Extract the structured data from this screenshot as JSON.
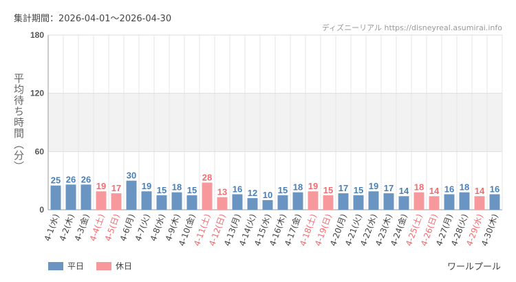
{
  "header": {
    "period": "集計期間：2026-04-01～2026-04-30",
    "source": "ディズニーリアル https://disneyreal.asumirai.info"
  },
  "legend": {
    "weekday": "平日",
    "holiday": "休日"
  },
  "attraction": "ワールプール",
  "colors": {
    "weekday": "#6a95c3",
    "holiday": "#f7999c",
    "weekday_text": "#4a7fb5",
    "holiday_text": "#f26b6f",
    "band": "#f2f2f2",
    "grid": "#e6e6e6"
  },
  "chart_data": {
    "type": "bar",
    "title": "",
    "xlabel": "",
    "ylabel": "平均待ち時間（分）",
    "ylim": [
      0,
      180
    ],
    "yticks": [
      0,
      60,
      120,
      180
    ],
    "categories": [
      "4-1(水)",
      "4-2(木)",
      "4-3(金)",
      "4-4(土)",
      "4-5(日)",
      "4-6(月)",
      "4-7(火)",
      "4-8(水)",
      "4-9(木)",
      "4-10(金)",
      "4-11(土)",
      "4-12(日)",
      "4-13(月)",
      "4-14(火)",
      "4-15(水)",
      "4-16(木)",
      "4-17(金)",
      "4-18(土)",
      "4-19(日)",
      "4-20(月)",
      "4-21(火)",
      "4-22(水)",
      "4-23(木)",
      "4-24(金)",
      "4-25(土)",
      "4-26(日)",
      "4-27(月)",
      "4-28(火)",
      "4-29(水)",
      "4-30(木)"
    ],
    "values": [
      25,
      26,
      26,
      19,
      17,
      30,
      19,
      15,
      18,
      15,
      28,
      13,
      16,
      12,
      10,
      15,
      18,
      19,
      15,
      17,
      15,
      19,
      17,
      14,
      18,
      14,
      16,
      18,
      14,
      16
    ],
    "holiday": [
      false,
      false,
      false,
      true,
      true,
      false,
      false,
      false,
      false,
      false,
      true,
      true,
      false,
      false,
      false,
      false,
      false,
      true,
      true,
      false,
      false,
      false,
      false,
      false,
      true,
      true,
      false,
      false,
      true,
      false
    ],
    "series": [
      {
        "name": "平日"
      },
      {
        "name": "休日"
      }
    ]
  }
}
